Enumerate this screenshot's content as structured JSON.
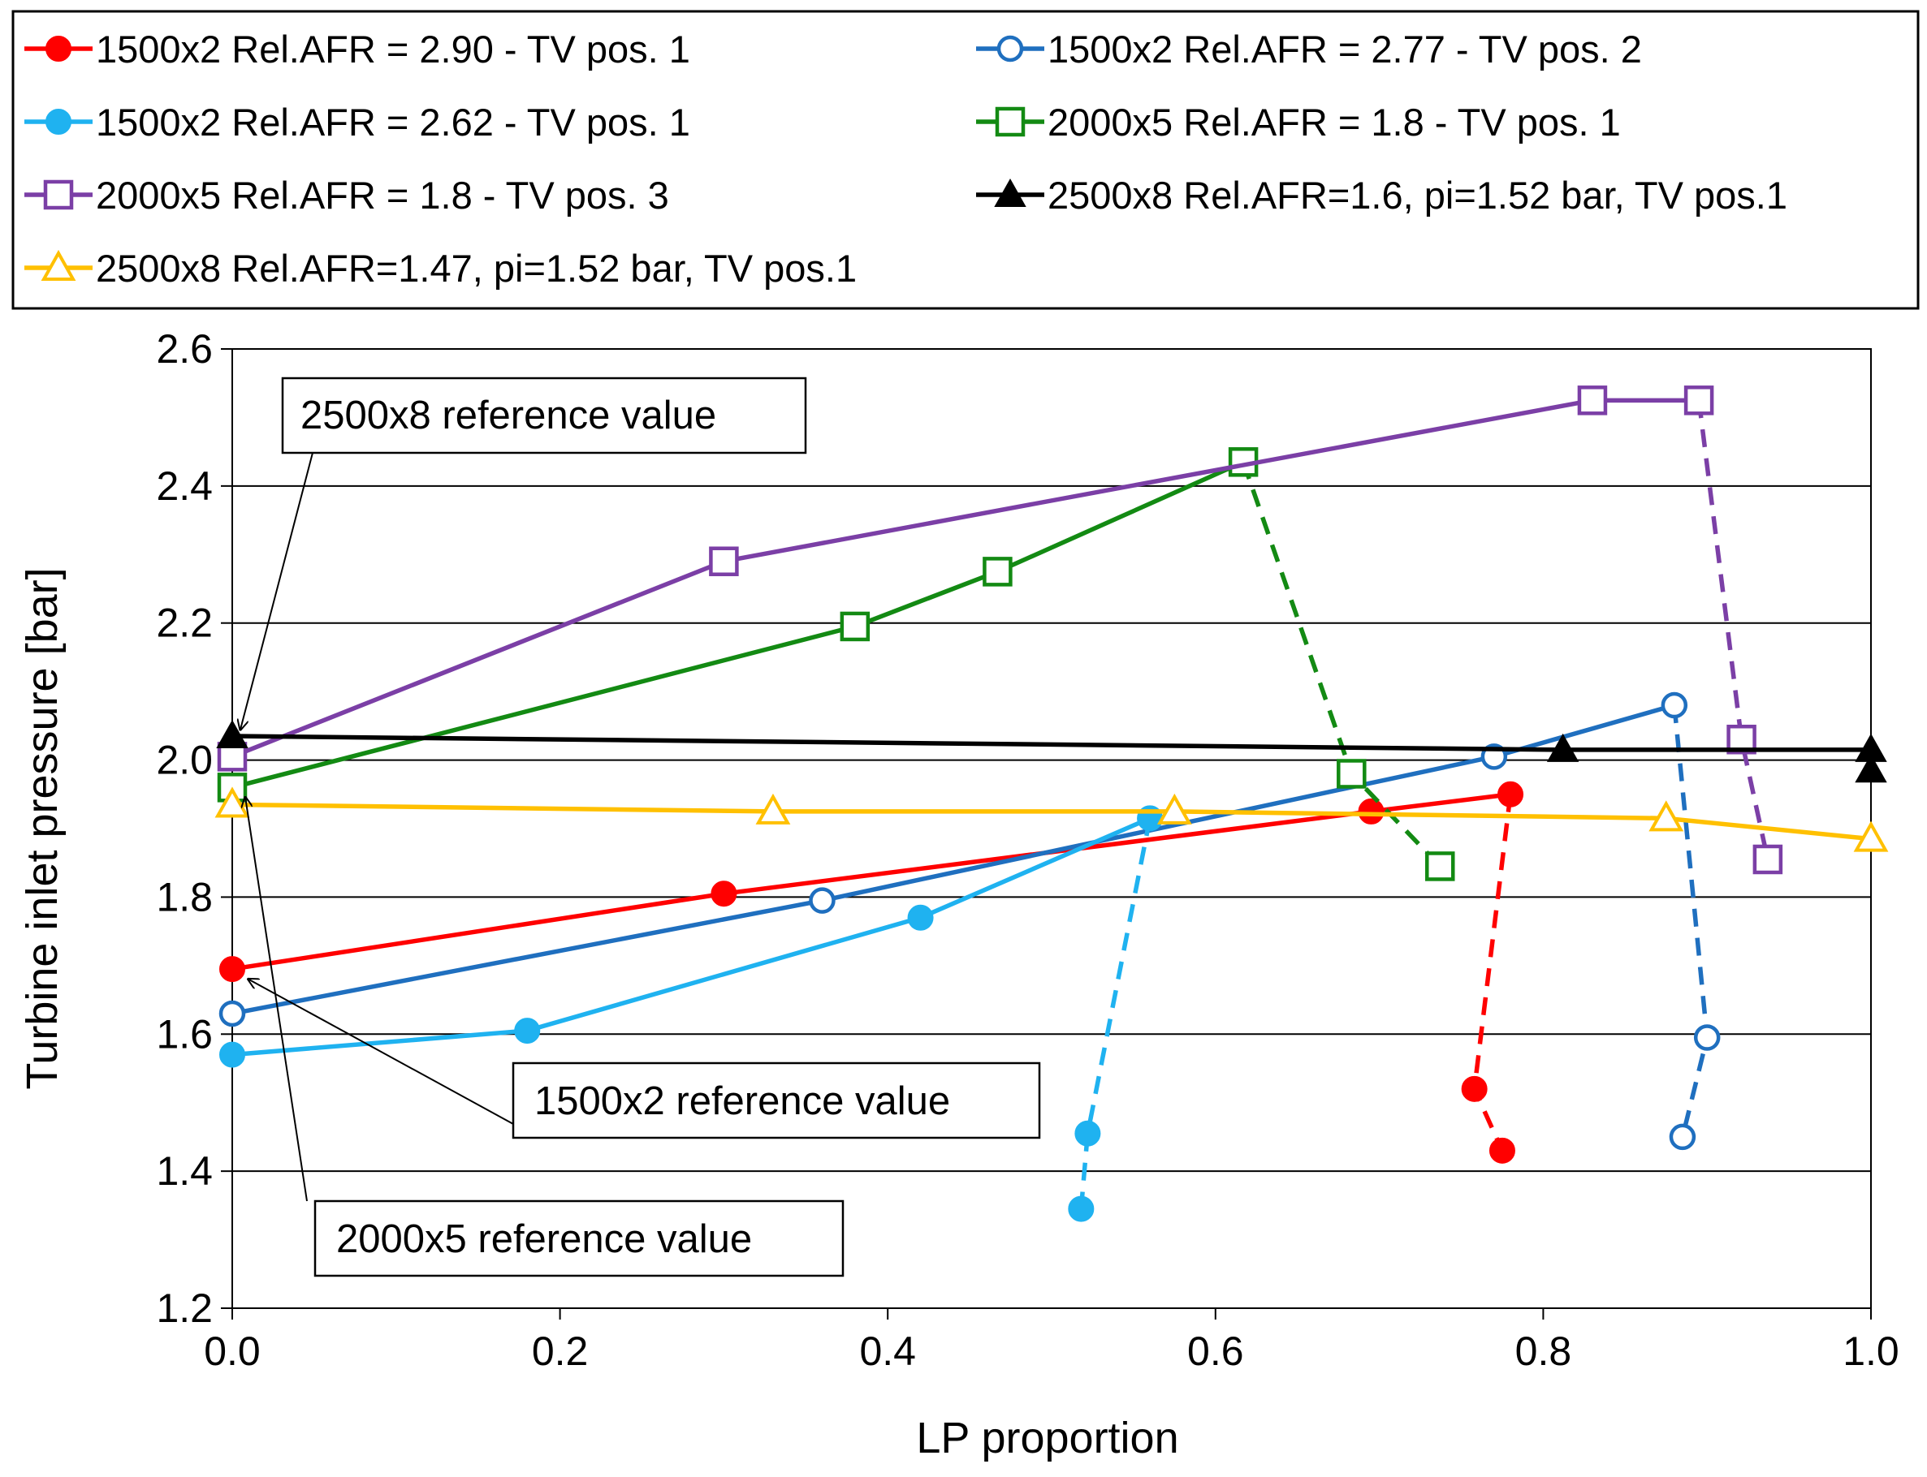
{
  "chart_data": {
    "type": "line",
    "title": "",
    "xlabel": "LP proportion",
    "ylabel": "Turbine inlet pressure [bar]",
    "xlim": [
      0.0,
      1.0
    ],
    "ylim": [
      1.2,
      2.6
    ],
    "x_ticks": [
      "0.0",
      "0.2",
      "0.4",
      "0.6",
      "0.8",
      "1.0"
    ],
    "y_ticks": [
      "1.2",
      "1.4",
      "1.6",
      "1.8",
      "2.0",
      "2.2",
      "2.4",
      "2.6"
    ],
    "grid": "horizontal",
    "legend_position": "top",
    "series": [
      {
        "name": "1500x2 Rel.AFR = 2.90 - TV pos. 1",
        "color": "#ff0000",
        "marker": "circle-filled",
        "solid": [
          [
            0.0,
            1.695
          ],
          [
            0.3,
            1.805
          ],
          [
            0.695,
            1.925
          ],
          [
            0.78,
            1.95
          ]
        ],
        "dashed": [
          [
            0.78,
            1.95
          ],
          [
            0.758,
            1.52
          ],
          [
            0.775,
            1.43
          ]
        ]
      },
      {
        "name": "1500x2 Rel.AFR = 2.77 - TV pos. 2",
        "color": "#1f6fbf",
        "marker": "circle-open",
        "solid": [
          [
            0.0,
            1.63
          ],
          [
            0.36,
            1.795
          ],
          [
            0.77,
            2.005
          ],
          [
            0.88,
            2.08
          ]
        ],
        "dashed": [
          [
            0.88,
            2.08
          ],
          [
            0.9,
            1.595
          ],
          [
            0.885,
            1.45
          ]
        ]
      },
      {
        "name": "1500x2 Rel.AFR = 2.62 - TV pos. 1",
        "color": "#1fb2f0",
        "marker": "circle-filled",
        "solid": [
          [
            0.0,
            1.57
          ],
          [
            0.18,
            1.605
          ],
          [
            0.42,
            1.77
          ],
          [
            0.56,
            1.915
          ]
        ],
        "dashed": [
          [
            0.56,
            1.915
          ],
          [
            0.522,
            1.455
          ],
          [
            0.518,
            1.345
          ]
        ]
      },
      {
        "name": "2000x5 Rel.AFR = 1.8 - TV pos. 1",
        "color": "#138a13",
        "marker": "square-open",
        "solid": [
          [
            0.0,
            1.96
          ],
          [
            0.38,
            2.195
          ],
          [
            0.467,
            2.275
          ],
          [
            0.617,
            2.435
          ]
        ],
        "dashed": [
          [
            0.617,
            2.435
          ],
          [
            0.683,
            1.98
          ],
          [
            0.737,
            1.845
          ]
        ]
      },
      {
        "name": "2000x5 Rel.AFR = 1.8 - TV pos. 3",
        "color": "#7b3fa6",
        "marker": "square-open",
        "solid": [
          [
            0.0,
            2.005
          ],
          [
            0.3,
            2.29
          ],
          [
            0.83,
            2.525
          ],
          [
            0.895,
            2.525
          ]
        ],
        "dashed": [
          [
            0.895,
            2.525
          ],
          [
            0.921,
            2.03
          ],
          [
            0.937,
            1.855
          ]
        ]
      },
      {
        "name": "2500x8 Rel.AFR=1.6, pi=1.52 bar, TV pos.1",
        "color": "#000000",
        "marker": "triangle-filled",
        "solid": [
          [
            0.0,
            2.035
          ],
          [
            0.812,
            2.015
          ],
          [
            1.0,
            2.015
          ]
        ],
        "dashed": [
          [
            1.0,
            2.015
          ],
          [
            1.0,
            1.985
          ]
        ]
      },
      {
        "name": "2500x8 Rel.AFR=1.47, pi=1.52 bar, TV pos.1",
        "color": "#ffc000",
        "marker": "triangle-open",
        "solid": [
          [
            0.0,
            1.935
          ],
          [
            0.33,
            1.925
          ],
          [
            0.575,
            1.925
          ],
          [
            0.875,
            1.915
          ],
          [
            1.0,
            1.885
          ]
        ],
        "dashed": []
      }
    ],
    "annotations": [
      {
        "text": "2500x8 reference value",
        "target": [
          0.005,
          2.045
        ]
      },
      {
        "text": "1500x2 reference value",
        "target": [
          0.01,
          1.68
        ]
      },
      {
        "text": "2000x5 reference value",
        "target": [
          0.008,
          1.945
        ]
      }
    ]
  }
}
